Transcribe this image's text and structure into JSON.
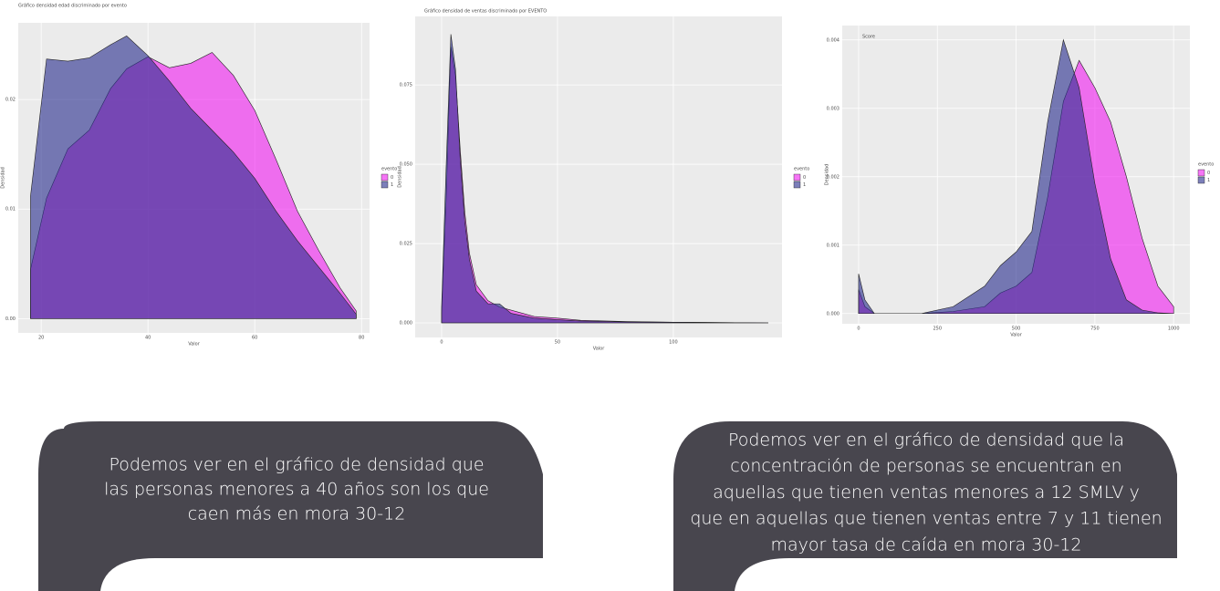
{
  "chart_data": [
    {
      "type": "area",
      "title": "Gráfico densidad edad discriminado por evento",
      "x_label": "Valor",
      "y_label": "Densidad",
      "x": [
        18,
        21,
        25,
        29,
        33,
        36,
        40,
        44,
        48,
        52,
        56,
        60,
        64,
        68,
        72,
        76,
        79
      ],
      "series": [
        {
          "name": "0",
          "color": "#f020f0",
          "values": [
            0.0045,
            0.011,
            0.0155,
            0.0172,
            0.021,
            0.0228,
            0.0239,
            0.0229,
            0.0233,
            0.0243,
            0.0222,
            0.019,
            0.0145,
            0.0098,
            0.0062,
            0.0028,
            0.0007
          ]
        },
        {
          "name": "1",
          "color": "#2c3190",
          "values": [
            0.0112,
            0.0237,
            0.0235,
            0.0238,
            0.025,
            0.0258,
            0.024,
            0.0217,
            0.0192,
            0.0172,
            0.0152,
            0.0128,
            0.0098,
            0.0071,
            0.0047,
            0.0023,
            0.0004
          ]
        }
      ],
      "xlim": [
        15.7,
        81.5
      ],
      "xticks": [
        20,
        40,
        60,
        80
      ],
      "ylim": [
        -0.0013,
        0.027
      ],
      "yticks": [
        {
          "value": 0,
          "label": "0.00"
        },
        0.01,
        0.02
      ],
      "legend_title": "evento",
      "grid": true
    },
    {
      "type": "area",
      "title": "Gráfico densidad de ventas discriminado por EVENTO",
      "x_label": "Valor",
      "y_label": "Densidad",
      "x": [
        0,
        2,
        4,
        6,
        8,
        10,
        12,
        15,
        20,
        25,
        30,
        40,
        50,
        60,
        80,
        100,
        120,
        141
      ],
      "series": [
        {
          "name": "0",
          "color": "#f020f0",
          "values": [
            0.003,
            0.04,
            0.087,
            0.078,
            0.055,
            0.035,
            0.022,
            0.012,
            0.007,
            0.005,
            0.004,
            0.002,
            0.0015,
            0.0008,
            0.0004,
            0.0002,
            0.0001,
            0
          ]
        },
        {
          "name": "1",
          "color": "#2c3190",
          "values": [
            0.005,
            0.05,
            0.091,
            0.08,
            0.052,
            0.032,
            0.02,
            0.01,
            0.006,
            0.006,
            0.003,
            0.0015,
            0.001,
            0.0006,
            0.0003,
            0.0002,
            0.0001,
            0
          ]
        }
      ],
      "xlim": [
        -11.4,
        146.9
      ],
      "xticks": [
        0,
        50,
        100
      ],
      "ylim": [
        -0.0046,
        0.0966
      ],
      "yticks": [
        {
          "value": 0,
          "label": "0.000"
        },
        0.025,
        {
          "value": 0.05,
          "label": "0.050"
        },
        0.075
      ],
      "legend_title": "evento",
      "grid": true
    },
    {
      "type": "area",
      "annotation": "Score",
      "x_label": "Valor",
      "y_label": "Densidad",
      "x": [
        0,
        20,
        50,
        200,
        300,
        400,
        450,
        500,
        550,
        600,
        650,
        700,
        750,
        800,
        850,
        900,
        950,
        1000
      ],
      "series": [
        {
          "name": "0",
          "color": "#f020f0",
          "values": [
            0.00035,
            0.0001,
            0,
            0,
            3e-05,
            0.0001,
            0.0003,
            0.0004,
            0.0006,
            0.0017,
            0.0031,
            0.0037,
            0.0033,
            0.0028,
            0.002,
            0.0011,
            0.0004,
            0.0001
          ]
        },
        {
          "name": "1",
          "color": "#2c3190",
          "values": [
            0.00058,
            0.0002,
            0,
            0,
            0.0001,
            0.0004,
            0.0007,
            0.0009,
            0.0012,
            0.0028,
            0.004,
            0.0033,
            0.0019,
            0.0008,
            0.0002,
            5e-05,
            1e-05,
            0
          ]
        }
      ],
      "xlim": [
        -52,
        1051.6
      ],
      "xticks": [
        0,
        250,
        500,
        750,
        1000
      ],
      "ylim": [
        -0.00015,
        0.00421
      ],
      "yticks": [
        {
          "value": 0,
          "label": "0.000"
        },
        0.001,
        0.002,
        0.003,
        0.004
      ],
      "legend_title": "evento",
      "grid": true
    }
  ],
  "callouts": [
    {
      "lines": [
        "Podemos ver en el gráfico de densidad que",
        "las personas menores a 40 años son los que",
        "caen más en mora 30-12"
      ]
    },
    {
      "lines": [
        "Podemos ver en el gráfico de densidad que la",
        "concentración de personas se encuentran en",
        "aquellas que tienen ventas menores a 12 SMLV y",
        "que en aquellas que tienen ventas entre 7 y 11 tienen",
        "mayor tasa de caída en mora 30-12"
      ]
    }
  ]
}
